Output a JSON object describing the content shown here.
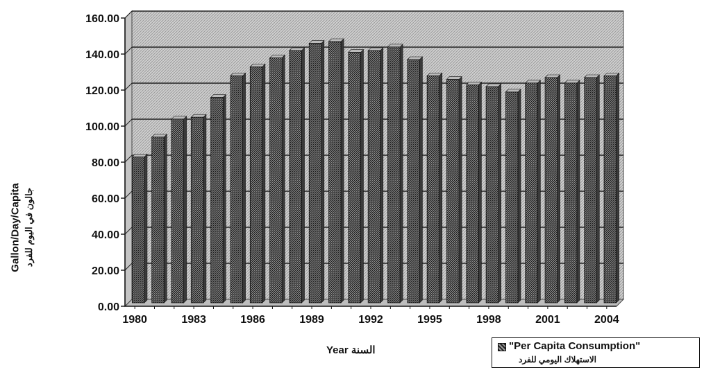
{
  "chart_data": {
    "type": "bar",
    "title": "",
    "xlabel": "Year السنة",
    "ylabel": "Gallon/Day/Capita",
    "ylabel_ar": "جالون في اليوم للفرد",
    "ylim": [
      0,
      160
    ],
    "yticks": [
      "0.00",
      "20.00",
      "40.00",
      "60.00",
      "80.00",
      "100.00",
      "120.00",
      "140.00",
      "160.00"
    ],
    "categories": [
      "1980",
      "1981",
      "1982",
      "1983",
      "1984",
      "1985",
      "1986",
      "1987",
      "1988",
      "1989",
      "1990",
      "1991",
      "1992",
      "1993",
      "1994",
      "1995",
      "1996",
      "1997",
      "1998",
      "1999",
      "2000",
      "2001",
      "2002",
      "2003",
      "2004"
    ],
    "xtick_labels": [
      "1980",
      "1983",
      "1986",
      "1989",
      "1992",
      "1995",
      "1998",
      "2001",
      "2004"
    ],
    "series": [
      {
        "name": "\"Per Capita Consumption\"",
        "name_ar": "الاستهلاك اليومي للفرد",
        "values": [
          81,
          92,
          102,
          103,
          114,
          126,
          131,
          136,
          140,
          144,
          145,
          139,
          140,
          142,
          135,
          126,
          124,
          121,
          120,
          117,
          122,
          125,
          122,
          125,
          126
        ]
      }
    ],
    "grid": true,
    "legend_position": "bottom-right"
  }
}
